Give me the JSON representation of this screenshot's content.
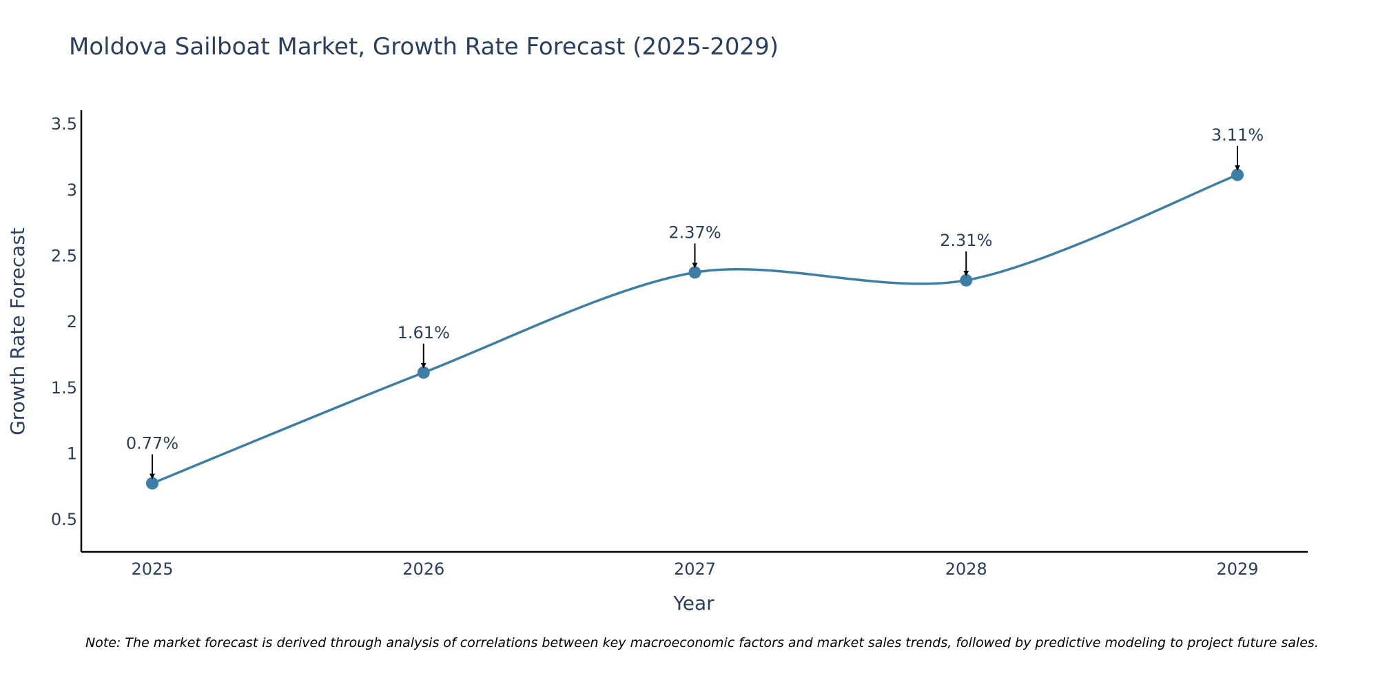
{
  "chart_data": {
    "type": "line",
    "title": "Moldova Sailboat Market, Growth Rate Forecast (2025-2029)",
    "xlabel": "Year",
    "ylabel": "Growth Rate Forecast",
    "categories": [
      "2025",
      "2026",
      "2027",
      "2028",
      "2029"
    ],
    "series": [
      {
        "name": "Growth Rate Forecast",
        "values": [
          0.77,
          1.61,
          2.37,
          2.31,
          3.11
        ]
      }
    ],
    "annotations": [
      "0.77%",
      "1.61%",
      "2.37%",
      "2.31%",
      "3.11%"
    ],
    "yticks": [
      0.5,
      1,
      1.5,
      2,
      2.5,
      3,
      3.5
    ],
    "ytick_labels": [
      "0.5",
      "1",
      "1.5",
      "2",
      "2.5",
      "3",
      "3.5"
    ],
    "ylim": [
      0.25,
      3.6
    ],
    "grid": false,
    "line_shape": "spline",
    "colors": {
      "line": "#3d7ea6",
      "marker": "#3d7ea6",
      "axis": "#000000",
      "text": "#2a3f5f",
      "arrow": "#000000"
    }
  },
  "note": "Note: The market forecast is derived through analysis of correlations between key macroeconomic factors and market sales trends, followed by predictive modeling to project future sales."
}
